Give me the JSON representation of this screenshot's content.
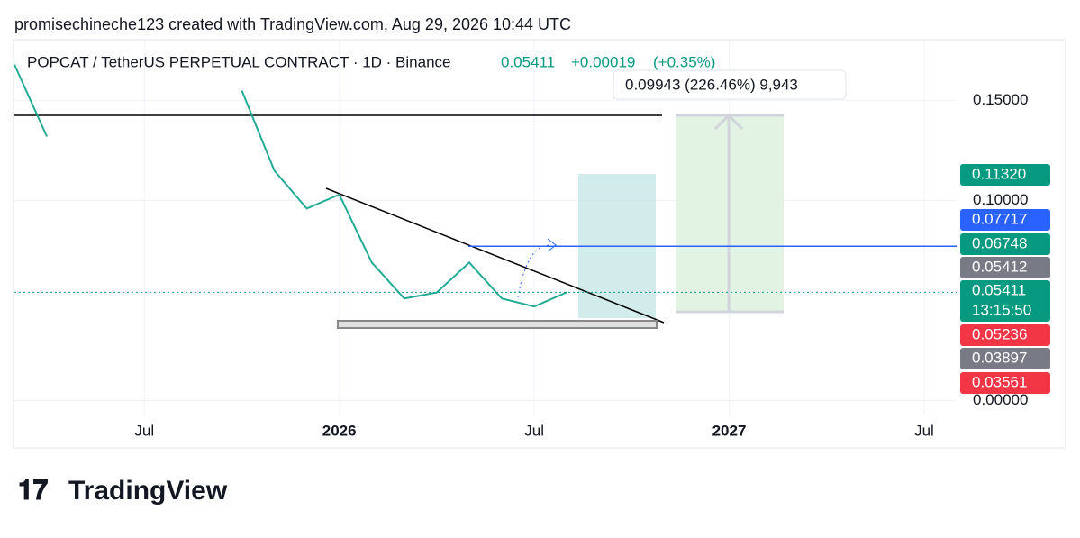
{
  "header": {
    "credit": "promisechineche123 created with TradingView.com, Aug 29, 2026 10:44 UTC"
  },
  "chart_data": {
    "type": "line",
    "title": "POPCAT / TetherUS PERPETUAL CONTRACT · 1D · Binance",
    "last_price": {
      "value": 0.05411,
      "label": "0.05411"
    },
    "change": "+0.00019",
    "change_pct": "(+0.35%)",
    "countdown": "13:15:50",
    "measure_label": "0.09943 (226.46%) 9,943",
    "series": [
      {
        "name": "POPCAT",
        "color": "#22ab94",
        "x": [
          "2025-03",
          "2025-04",
          "2025-05",
          "2025-06",
          "2025-07",
          "2025-08",
          "2025-09",
          "2025-10",
          "2025-11",
          "2025-12",
          "2026-01",
          "2026-02",
          "2026-03",
          "2026-04",
          "2026-05",
          "2026-06",
          "2026-07",
          "2026-08"
        ],
        "values": [
          0.168,
          0.132,
          null,
          null,
          null,
          null,
          null,
          0.155,
          0.115,
          0.096,
          0.103,
          0.069,
          0.051,
          0.054,
          0.069,
          0.051,
          0.047,
          0.05411
        ]
      }
    ],
    "xlim": [
      "2025-03",
      "2027-08"
    ],
    "xticks": [
      {
        "value": "2025-07",
        "label": "Jul"
      },
      {
        "value": "2026-01",
        "label": "2026"
      },
      {
        "value": "2026-07",
        "label": "Jul"
      },
      {
        "value": "2027-01",
        "label": "2027"
      },
      {
        "value": "2027-07",
        "label": "Jul"
      }
    ],
    "ylim": [
      -0.007,
      0.18
    ],
    "yticks": [
      {
        "value": 0.15,
        "label": "0.15000"
      },
      {
        "value": 0.1,
        "label": "0.10000"
      },
      {
        "value": 0,
        "label": "0.00000"
      }
    ],
    "grid": true,
    "price_labels": [
      {
        "value": 0.1132,
        "label": "0.11320",
        "color": "#089981"
      },
      {
        "value": 0.07717,
        "label": "0.07717",
        "color": "#2962ff"
      },
      {
        "value": 0.06748,
        "label": "0.06748",
        "color": "#089981"
      },
      {
        "value": 0.05412,
        "label": "0.05412",
        "color": "#787b86"
      },
      {
        "value": 0.05411,
        "label": "0.05411",
        "color": "#089981"
      },
      {
        "value": 0.05236,
        "label": "0.05236",
        "color": "#f23645"
      },
      {
        "value": 0.03897,
        "label": "0.03897",
        "color": "#787b86"
      },
      {
        "value": 0.03561,
        "label": "0.03561",
        "color": "#f23645"
      }
    ]
  },
  "footer": {
    "logo": "TradingView"
  }
}
